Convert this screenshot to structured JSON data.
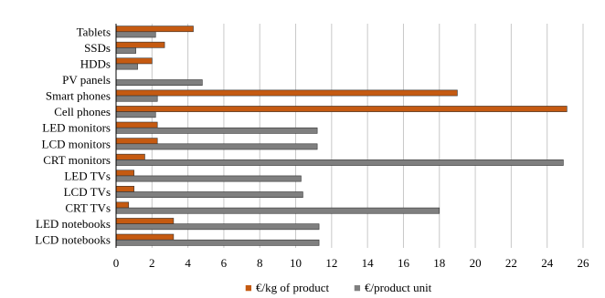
{
  "chart_data": {
    "type": "bar",
    "orientation": "horizontal",
    "categories": [
      "Tablets",
      "SSDs",
      "HDDs",
      "PV panels",
      "Smart phones",
      "Cell phones",
      "LED monitors",
      "LCD monitors",
      "CRT monitors",
      "LED TVs",
      "LCD TVs",
      "CRT TVs",
      "LED notebooks",
      "LCD notebooks"
    ],
    "series": [
      {
        "name": "€/kg of product",
        "color": "#c55a11",
        "values": [
          4.3,
          2.7,
          2.0,
          0.0,
          19.0,
          25.1,
          2.3,
          2.3,
          1.6,
          1.0,
          1.0,
          0.7,
          3.2,
          3.2
        ]
      },
      {
        "name": "€/product unit",
        "color": "#7f7f7f",
        "values": [
          2.2,
          1.1,
          1.2,
          4.8,
          2.3,
          2.2,
          11.2,
          11.2,
          24.9,
          10.3,
          10.4,
          18.0,
          11.3,
          11.3
        ]
      }
    ],
    "xlim": [
      0,
      26
    ],
    "x_ticks": [
      "0",
      "2",
      "4",
      "6",
      "8",
      "10",
      "12",
      "14",
      "16",
      "18",
      "20",
      "22",
      "24",
      "26"
    ],
    "grid": true,
    "legend_position": "bottom",
    "legend_markers": [
      "■",
      "■"
    ]
  }
}
